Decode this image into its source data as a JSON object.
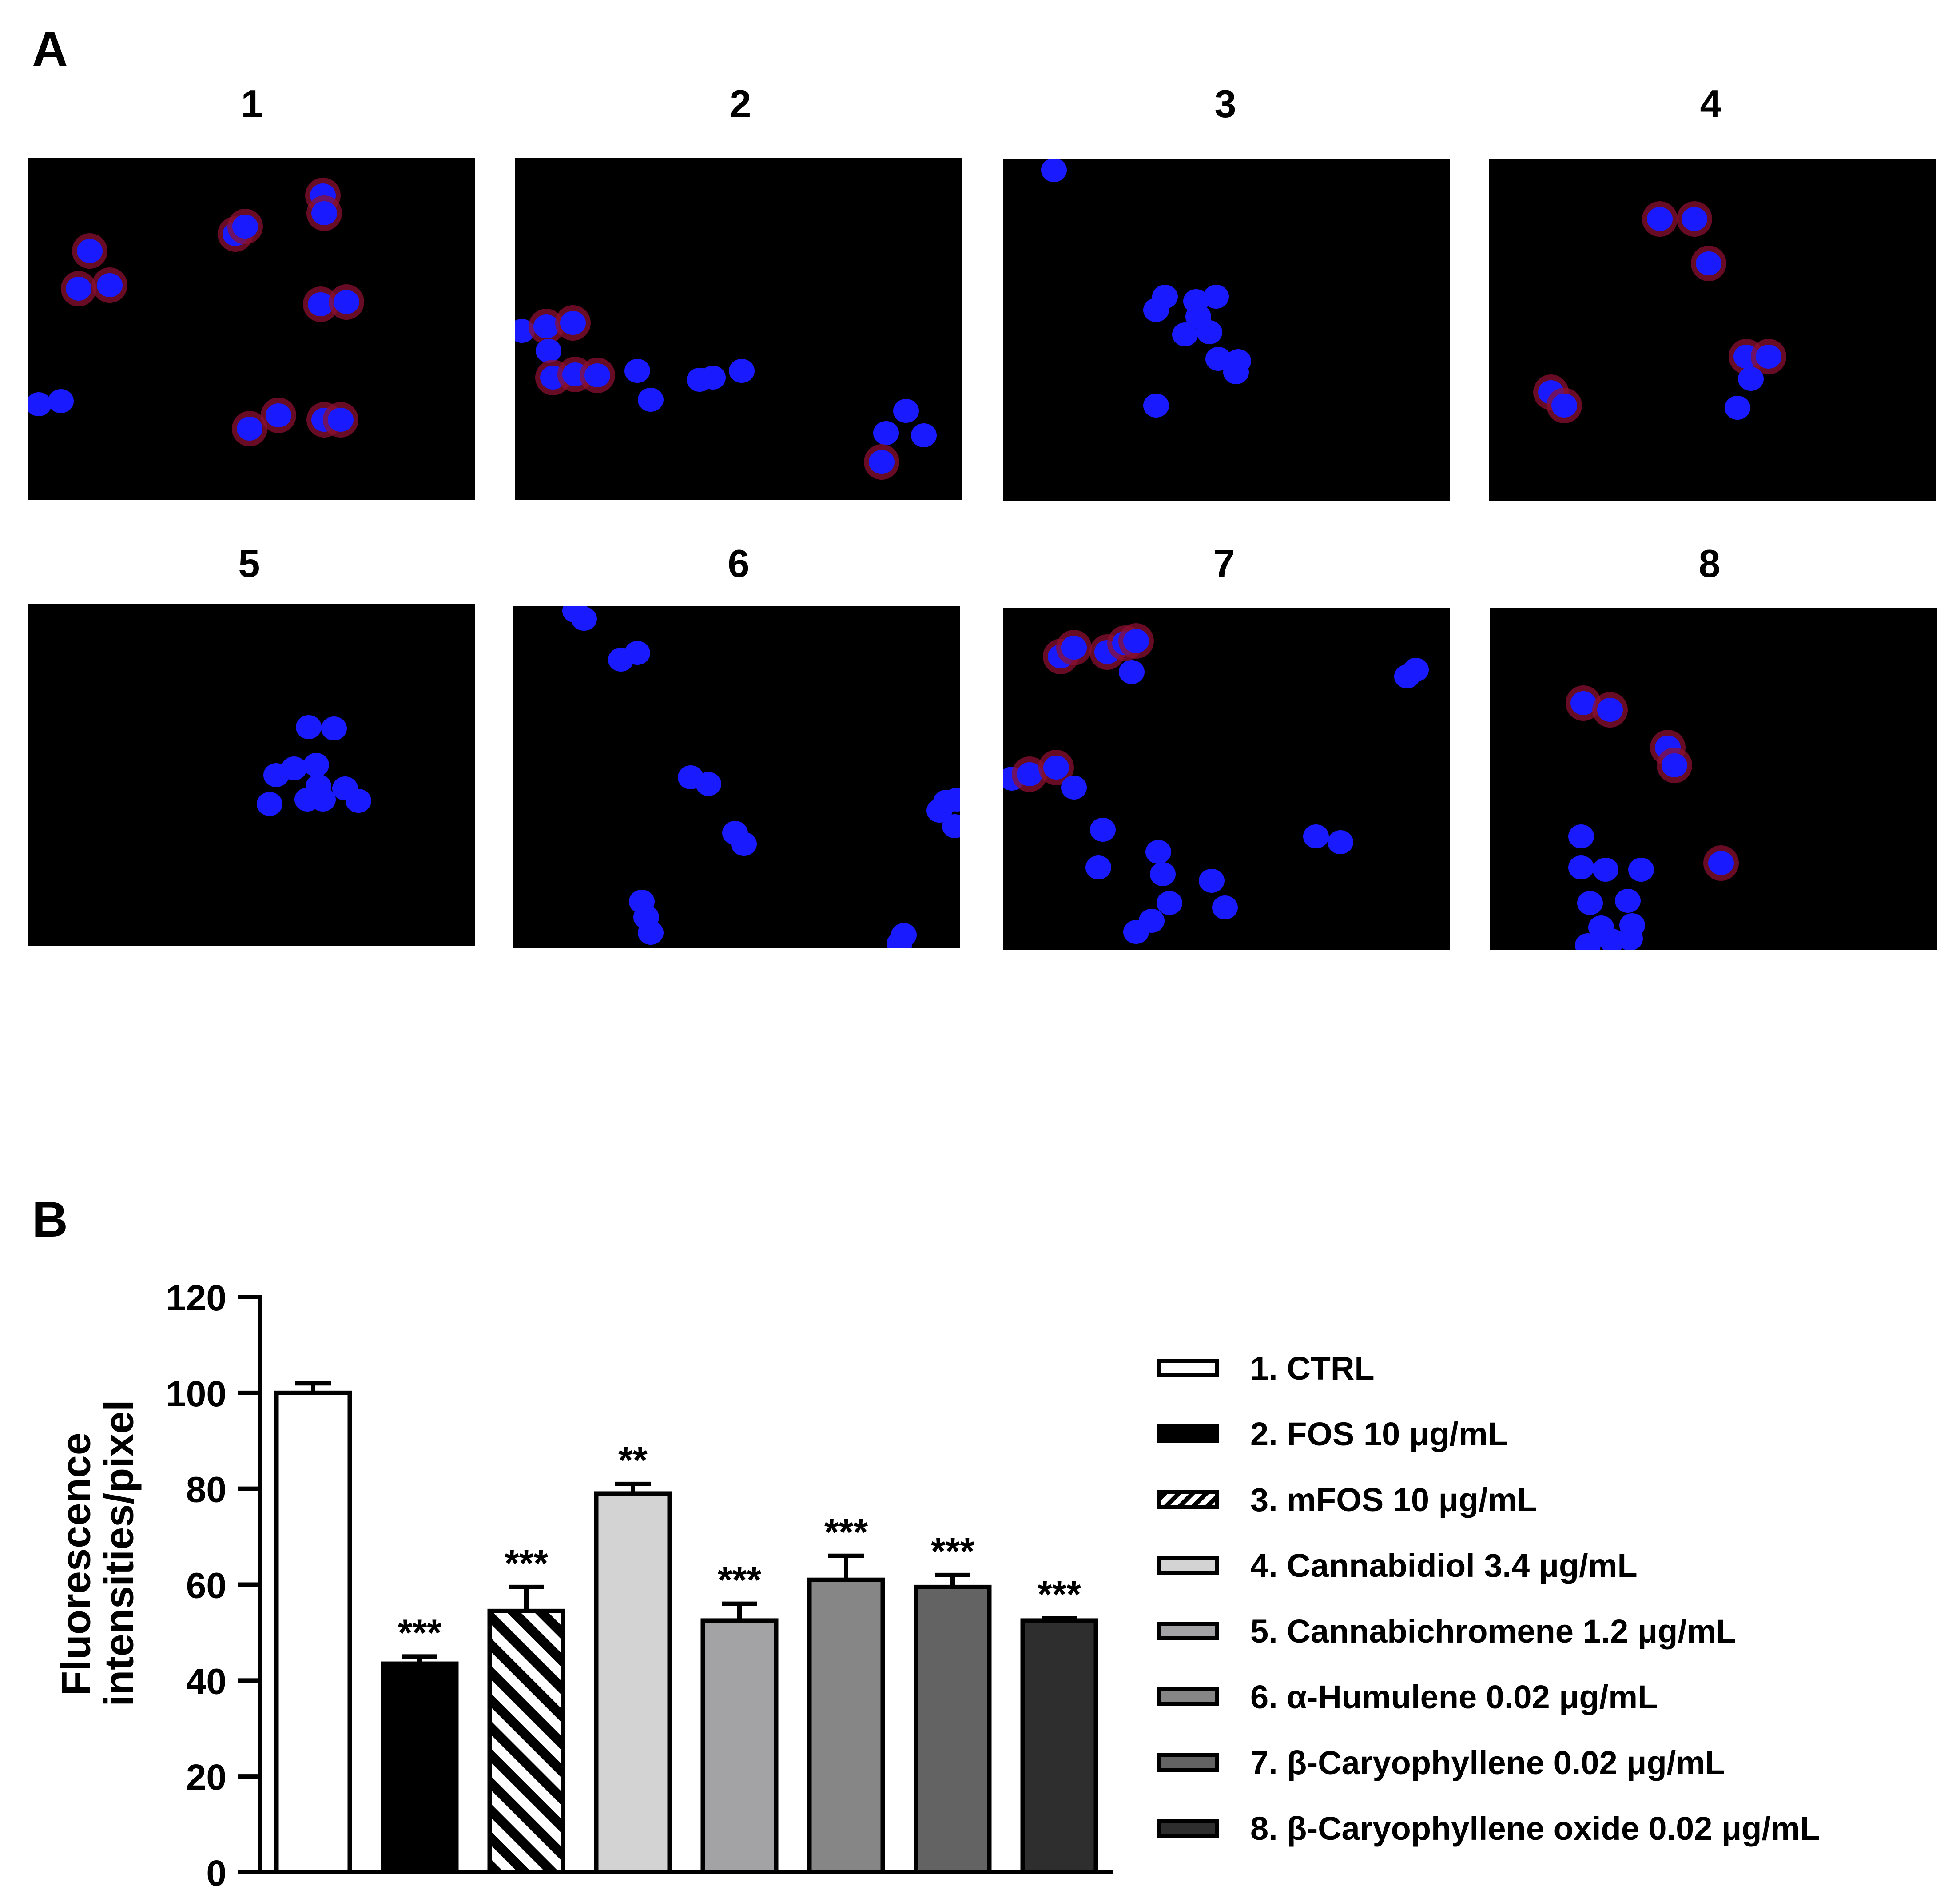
{
  "panels": {
    "a_letter": "A",
    "b_letter": "B"
  },
  "micrographs": [
    {
      "label": "1"
    },
    {
      "label": "2"
    },
    {
      "label": "3"
    },
    {
      "label": "4"
    },
    {
      "label": "5"
    },
    {
      "label": "6"
    },
    {
      "label": "7"
    },
    {
      "label": "8"
    }
  ],
  "colors": {
    "nucleus": "#1a1aff",
    "membrane_halo": "#8a1030",
    "background": "#000000"
  },
  "chart_data": {
    "type": "bar",
    "title": "",
    "xlabel": "",
    "ylabel_line1": "Fluorescence",
    "ylabel_line2": "intensities/pixel",
    "ylim": [
      0,
      120
    ],
    "yticks": [
      "0",
      "20",
      "40",
      "60",
      "80",
      "100",
      "120"
    ],
    "categories": [
      "1. CTRL",
      "2. FOS 10 μg/mL",
      "3. mFOS 10 μg/mL",
      "4. Cannabidiol 3.4 μg/mL",
      "5. Cannabichromene 1.2 μg/mL",
      "6. α-Humulene 0.02 μg/mL",
      "7. β-Caryophyllene 0.02 μg/mL",
      "8. β-Caryophyllene oxide 0.02 μg/mL"
    ],
    "values": [
      100,
      43.5,
      54.5,
      79,
      52.5,
      61,
      59.5,
      52.5
    ],
    "errors": [
      2,
      1.5,
      5,
      2,
      3.5,
      5,
      2.5,
      0.5
    ],
    "significance": [
      "",
      "***",
      "***",
      "**",
      "***",
      "***",
      "***",
      "***"
    ],
    "fills": [
      "#ffffff",
      "#000000",
      "hatch",
      "#d3d3d3",
      "#a3a3a6",
      "#868686",
      "#636363",
      "#2e2e2e"
    ],
    "legend_position": "right"
  }
}
